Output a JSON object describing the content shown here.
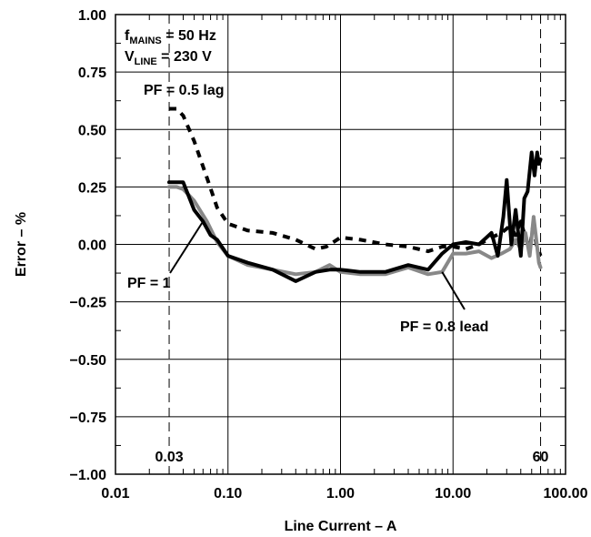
{
  "chart_data": {
    "type": "line",
    "xscale": "log",
    "xlim": [
      0.01,
      100
    ],
    "ylim": [
      -1.0,
      1.0
    ],
    "grid": true,
    "xlabel": "Line Current – A",
    "ylabel": "Error – %",
    "x_tick_labels": [
      "0.01",
      "0.10",
      "1.00",
      "10.00",
      "100.00"
    ],
    "y_tick_labels": [
      "−1.00",
      "−0.75",
      "−0.50",
      "−0.25",
      "0.00",
      "0.25",
      "0.50",
      "0.75",
      "1.00"
    ],
    "conditions": {
      "line1_main": "f",
      "line1_sub": "MAINS",
      "line1_rest": " = 50 Hz",
      "line2_main": "V",
      "line2_sub": "LINE",
      "line2_rest": " = 230 V"
    },
    "reference_lines": [
      {
        "x": 0.03,
        "label": "0.03"
      },
      {
        "x": 60,
        "label": "60"
      }
    ],
    "series": [
      {
        "label": "PF = 0.5 lag",
        "color": "#000000",
        "style": "dashed",
        "x": [
          0.03,
          0.035,
          0.04,
          0.05,
          0.065,
          0.08,
          0.1,
          0.15,
          0.25,
          0.4,
          0.6,
          0.75,
          1.0,
          1.5,
          2.5,
          4.0,
          6.0,
          8.0,
          10.0,
          13.0,
          17.0,
          22.0,
          27.0,
          32.0,
          36.0,
          40.0,
          44.0,
          48.0,
          52.0,
          55.0,
          58.0,
          60.0
        ],
        "y": [
          0.59,
          0.59,
          0.56,
          0.45,
          0.29,
          0.16,
          0.09,
          0.06,
          0.05,
          0.02,
          -0.02,
          -0.01,
          0.03,
          0.02,
          0.0,
          -0.01,
          -0.03,
          -0.01,
          -0.01,
          -0.02,
          0.0,
          0.03,
          0.05,
          0.08,
          0.04,
          0.1,
          0.03,
          -0.02,
          0.1,
          0.0,
          -0.03,
          -0.05
        ]
      },
      {
        "label": "PF = 1",
        "color": "#888888",
        "style": "solid",
        "x": [
          0.03,
          0.035,
          0.04,
          0.05,
          0.065,
          0.08,
          0.1,
          0.15,
          0.25,
          0.4,
          0.6,
          0.8,
          1.0,
          1.5,
          2.5,
          4.0,
          6.0,
          8.0,
          10.0,
          13.0,
          17.0,
          22.0,
          27.0,
          32.0,
          36.0,
          40.0,
          44.0,
          48.0,
          52.0,
          55.0,
          58.0,
          60.0
        ],
        "y": [
          0.25,
          0.25,
          0.24,
          0.19,
          0.1,
          0.01,
          -0.05,
          -0.09,
          -0.11,
          -0.13,
          -0.12,
          -0.09,
          -0.12,
          -0.13,
          -0.13,
          -0.1,
          -0.13,
          -0.12,
          -0.04,
          -0.04,
          -0.03,
          -0.06,
          -0.04,
          -0.02,
          0.02,
          -0.02,
          0.05,
          -0.05,
          0.12,
          0.02,
          -0.08,
          -0.1
        ]
      },
      {
        "label": "PF = 0.8 lead",
        "color": "#000000",
        "style": "solid",
        "x": [
          0.03,
          0.035,
          0.04,
          0.05,
          0.06,
          0.07,
          0.08,
          0.1,
          0.15,
          0.25,
          0.4,
          0.6,
          0.8,
          1.0,
          1.5,
          2.5,
          4.0,
          6.0,
          8.0,
          10.0,
          13.0,
          17.0,
          22.0,
          25.0,
          28.0,
          30.0,
          33.0,
          36.0,
          40.0,
          43.0,
          46.0,
          50.0,
          53.0,
          56.0,
          58.0,
          60.0
        ],
        "y": [
          0.27,
          0.27,
          0.27,
          0.15,
          0.1,
          0.04,
          0.02,
          -0.05,
          -0.08,
          -0.11,
          -0.16,
          -0.12,
          -0.11,
          -0.11,
          -0.12,
          -0.12,
          -0.09,
          -0.11,
          -0.04,
          0.0,
          0.01,
          0.0,
          0.05,
          -0.05,
          0.12,
          0.28,
          0.0,
          0.15,
          -0.05,
          0.2,
          0.23,
          0.4,
          0.3,
          0.4,
          0.35,
          0.37
        ]
      }
    ],
    "annotations": [
      {
        "text": "PF = 0.5 lag",
        "target": "PF = 0.5 lag"
      },
      {
        "text": "PF = 1",
        "target": "PF = 1"
      },
      {
        "text": "PF = 0.8 lead",
        "target": "PF = 0.8 lead"
      }
    ]
  }
}
